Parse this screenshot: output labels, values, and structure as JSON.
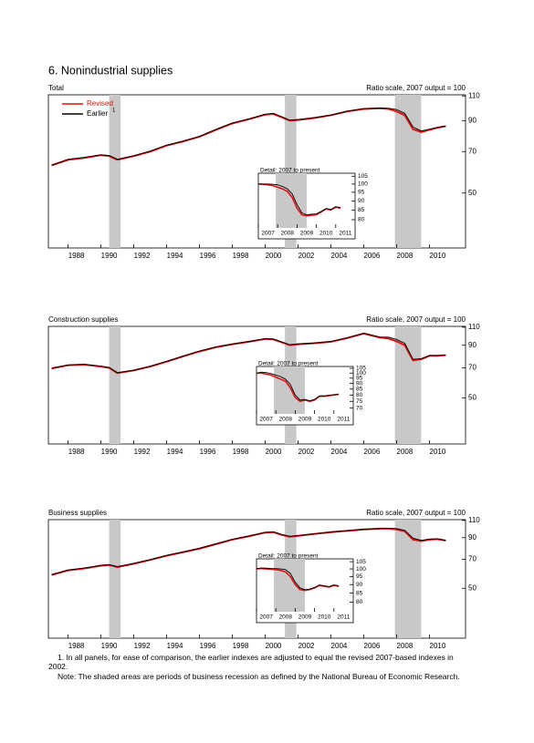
{
  "page_title": "6. Nonindustrial supplies",
  "notes": [
    "1. In all panels, for ease of comparison, the earlier indexes are adjusted to equal the revised 2007-based indexes in 2002.",
    "Note: The shaded areas are periods of business recession as defined by the National Bureau of Economic Research."
  ],
  "chart_data": [
    {
      "type": "line",
      "title": "Total",
      "subtitle": "Ratio scale, 2007 output = 100",
      "log_scale": true,
      "legend": "upper left",
      "legend_note": "1",
      "x": [
        1987,
        1988,
        1989,
        1990,
        1990.5,
        1991,
        1992,
        1993,
        1994,
        1995,
        1996,
        1997,
        1998,
        1999,
        2000,
        2000.5,
        2001,
        2001.5,
        2002,
        2003,
        2004,
        2005,
        2006,
        2007,
        2007.5,
        2008,
        2008.5,
        2009,
        2009.5,
        2010,
        2010.5,
        2011
      ],
      "series": [
        {
          "name": "Revised",
          "color": "#dd1111",
          "values": [
            62.6,
            65.5,
            66.5,
            68,
            67.5,
            65.5,
            67.5,
            70,
            73.5,
            76,
            79,
            83.5,
            88,
            91,
            94.5,
            95,
            92.5,
            90,
            90.5,
            92,
            94,
            97,
            99,
            99.5,
            99,
            97,
            94,
            84,
            82,
            83.5,
            85,
            86
          ]
        },
        {
          "name": "Earlier",
          "color": "#000000",
          "values": [
            62.6,
            65.7,
            66.8,
            68.2,
            67.8,
            65.8,
            67.6,
            70.3,
            73.8,
            76.3,
            79.2,
            83.8,
            88.3,
            91.2,
            94.8,
            95.5,
            93,
            90.4,
            90.8,
            92.2,
            94.2,
            97.2,
            99.2,
            99.7,
            99.6,
            98.5,
            95.5,
            85.5,
            82.8,
            84,
            85.3,
            86.2
          ]
        }
      ],
      "recessions": [
        [
          1990.5,
          1991.2
        ],
        [
          2001.2,
          2001.9
        ],
        [
          2007.9,
          2009.5
        ]
      ],
      "xlim": [
        1986.8,
        2012.2
      ],
      "xticks": [
        1988,
        1990,
        1992,
        1994,
        1996,
        1998,
        2000,
        2002,
        2004,
        2006,
        2008,
        2010
      ],
      "ylim": [
        32,
        111
      ],
      "yticks": [
        110,
        90,
        70,
        50
      ],
      "inset": {
        "type": "line",
        "title": "Detail: 2007 to present",
        "log_scale": true,
        "x": [
          2007,
          2007.25,
          2007.5,
          2007.75,
          2008,
          2008.25,
          2008.5,
          2008.75,
          2009,
          2009.25,
          2009.5,
          2009.75,
          2010,
          2010.25,
          2010.5,
          2010.75,
          2011,
          2011.25
        ],
        "series": [
          {
            "name": "Revised",
            "color": "#dd1111",
            "values": [
              100,
              99.8,
              99.5,
              99,
              98,
              97,
              95.5,
              92,
              86,
              82.5,
              82,
              82.3,
              82.5,
              84,
              85.5,
              85,
              86.5,
              86
            ]
          },
          {
            "name": "Earlier",
            "color": "#000000",
            "values": [
              100,
              100,
              100,
              99.8,
              99.5,
              98.5,
              97,
              94,
              88,
              83.5,
              82.5,
              82.8,
              83,
              84.3,
              85.8,
              85.3,
              86.8,
              86.3
            ]
          }
        ],
        "recessions": [
          [
            2007.9,
            2009.5
          ]
        ],
        "xlim": [
          2007,
          2012
        ],
        "xticks": [
          2007,
          2008,
          2009,
          2010,
          2011
        ],
        "ylim": [
          76,
          107
        ],
        "yticks": [
          105,
          100,
          95,
          90,
          85,
          80
        ]
      }
    },
    {
      "type": "line",
      "title": "Construction supplies",
      "subtitle": "Ratio scale, 2007 output = 100",
      "log_scale": true,
      "x": [
        1987,
        1988,
        1989,
        1990,
        1990.5,
        1991,
        1992,
        1993,
        1994,
        1995,
        1996,
        1997,
        1998,
        1999,
        2000,
        2000.5,
        2001,
        2001.5,
        2002,
        2003,
        2004,
        2005,
        2006,
        2007,
        2007.5,
        2008,
        2008.5,
        2009,
        2009.5,
        2010,
        2010.5,
        2011
      ],
      "series": [
        {
          "name": "Revised",
          "color": "#dd1111",
          "values": [
            69.5,
            72,
            72.5,
            71,
            70,
            66,
            68,
            71,
            75,
            79.5,
            84,
            88,
            91,
            93.5,
            96.5,
            96,
            93,
            90,
            91,
            92,
            93.5,
            97.5,
            102.5,
            98,
            97,
            94,
            90,
            76,
            77,
            80,
            80,
            80.5
          ]
        },
        {
          "name": "Earlier",
          "color": "#000000",
          "values": [
            69.7,
            72.3,
            72.8,
            71.3,
            70.3,
            66.3,
            68.2,
            71.3,
            75.3,
            79.8,
            84.3,
            88.3,
            91.3,
            93.8,
            96.8,
            96.5,
            93.5,
            90.5,
            91.3,
            92.3,
            93.8,
            97.8,
            102.8,
            98.5,
            98.5,
            96,
            92,
            77,
            77.5,
            80.3,
            80.3,
            80.8
          ]
        }
      ],
      "recessions": [
        [
          1990.5,
          1991.2
        ],
        [
          2001.2,
          2001.9
        ],
        [
          2007.9,
          2009.5
        ]
      ],
      "xlim": [
        1986.8,
        2012.2
      ],
      "xticks": [
        1988,
        1990,
        1992,
        1994,
        1996,
        1998,
        2000,
        2002,
        2004,
        2006,
        2008,
        2010
      ],
      "ylim": [
        30,
        111
      ],
      "yticks": [
        110,
        90,
        70,
        50
      ],
      "inset": {
        "type": "line",
        "title": "Detail: 2007 to present",
        "log_scale": true,
        "x": [
          2007,
          2007.25,
          2007.5,
          2007.75,
          2008,
          2008.25,
          2008.5,
          2008.75,
          2009,
          2009.25,
          2009.5,
          2009.75,
          2010,
          2010.25,
          2010.5,
          2010.75,
          2011,
          2011.25
        ],
        "series": [
          {
            "name": "Revised",
            "color": "#dd1111",
            "values": [
              100,
              100,
              99,
              98,
              96,
              94,
              92,
              86,
              78,
              75,
              76,
              75,
              76,
              79,
              79,
              79.5,
              80,
              80.5
            ]
          },
          {
            "name": "Earlier",
            "color": "#000000",
            "values": [
              100,
              101,
              100.5,
              99.5,
              98,
              96.5,
              94,
              89,
              80,
              76,
              76.5,
              75.5,
              76.5,
              79.3,
              79.3,
              79.8,
              80.3,
              80.8
            ]
          }
        ],
        "recessions": [
          [
            2007.9,
            2009.5
          ]
        ],
        "xlim": [
          2007,
          2012
        ],
        "xticks": [
          2007,
          2008,
          2009,
          2010,
          2011
        ],
        "ylim": [
          66,
          107
        ],
        "yticks": [
          105,
          100,
          95,
          90,
          85,
          80,
          75,
          70
        ]
      }
    },
    {
      "type": "line",
      "title": "Business supplies",
      "subtitle": "Ratio scale, 2007 output = 100",
      "log_scale": true,
      "x": [
        1987,
        1988,
        1989,
        1990,
        1990.5,
        1991,
        1992,
        1993,
        1994,
        1995,
        1996,
        1997,
        1998,
        1999,
        2000,
        2000.5,
        2001,
        2001.5,
        2002,
        2003,
        2004,
        2005,
        2006,
        2007,
        2007.5,
        2008,
        2008.5,
        2009,
        2009.5,
        2010,
        2010.5,
        2011
      ],
      "series": [
        {
          "name": "Revised",
          "color": "#dd1111",
          "values": [
            58.4,
            61.6,
            63,
            65,
            65.5,
            64,
            66.5,
            69.5,
            73,
            76,
            79.3,
            83.5,
            88,
            91.5,
            95.5,
            96,
            93,
            91,
            92,
            94,
            96,
            97.5,
            99,
            100,
            100,
            99,
            97,
            88,
            86.5,
            88,
            88.5,
            87
          ]
        },
        {
          "name": "Earlier",
          "color": "#000000",
          "values": [
            58.6,
            61.8,
            63.3,
            65.3,
            65.8,
            64.3,
            66.8,
            69.8,
            73.3,
            76.3,
            79.6,
            83.8,
            88.3,
            91.8,
            95.8,
            96.4,
            93.5,
            91.4,
            92.3,
            94.2,
            96.2,
            97.7,
            99.2,
            100.2,
            100.4,
            100,
            98,
            89.5,
            87.3,
            88.5,
            88.8,
            87.3
          ]
        }
      ],
      "recessions": [
        [
          1990.5,
          1991.2
        ],
        [
          2001.2,
          2001.9
        ],
        [
          2007.9,
          2009.5
        ]
      ],
      "xlim": [
        1986.8,
        2012.2
      ],
      "xticks": [
        1988,
        1990,
        1992,
        1994,
        1996,
        1998,
        2000,
        2002,
        2004,
        2006,
        2008,
        2010
      ],
      "ylim": [
        28,
        111
      ],
      "yticks": [
        110,
        90,
        70,
        50
      ],
      "inset": {
        "type": "line",
        "title": "Detail: 2007 to present",
        "log_scale": true,
        "x": [
          2007,
          2007.25,
          2007.5,
          2007.75,
          2008,
          2008.25,
          2008.5,
          2008.75,
          2009,
          2009.25,
          2009.5,
          2009.75,
          2010,
          2010.25,
          2010.5,
          2010.75,
          2011,
          2011.25
        ],
        "series": [
          {
            "name": "Revised",
            "color": "#dd1111",
            "values": [
              100,
              100.3,
              100,
              99.8,
              99.5,
              99,
              98,
              95,
              90,
              87,
              86.5,
              87,
              88,
              89.5,
              89,
              88.5,
              89.5,
              89
            ]
          },
          {
            "name": "Earlier",
            "color": "#000000",
            "values": [
              100.2,
              100.6,
              100.5,
              100.3,
              100.2,
              100,
              99.5,
              97,
              91.5,
              88,
              87,
              87.3,
              88.3,
              89.8,
              89.3,
              88.8,
              89.8,
              89.3
            ]
          }
        ],
        "recessions": [
          [
            2007.9,
            2009.5
          ]
        ],
        "xlim": [
          2007,
          2012
        ],
        "xticks": [
          2007,
          2008,
          2009,
          2010,
          2011
        ],
        "ylim": [
          75,
          107
        ],
        "yticks": [
          105,
          100,
          95,
          90,
          85,
          80
        ]
      }
    }
  ]
}
